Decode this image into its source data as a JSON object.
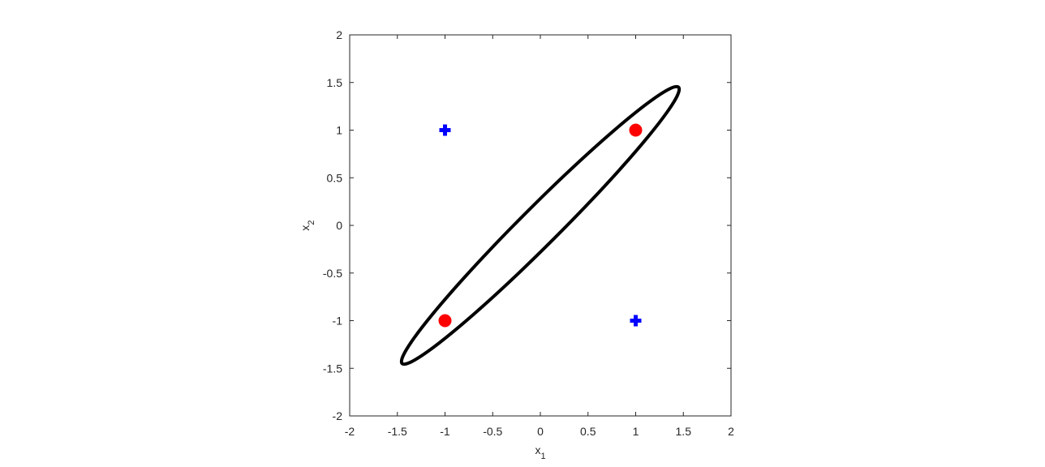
{
  "chart_data": {
    "type": "scatter",
    "x_label": {
      "text": "x",
      "subscript": "1"
    },
    "y_label": {
      "text": "x",
      "subscript": "2"
    },
    "xlim": [
      -2,
      2
    ],
    "ylim": [
      -2,
      2
    ],
    "xticks": [
      -2,
      -1.5,
      -1,
      -0.5,
      0,
      0.5,
      1,
      1.5,
      2
    ],
    "yticks": [
      -2,
      -1.5,
      -1,
      -0.5,
      0,
      0.5,
      1,
      1.5,
      2
    ],
    "grid": false,
    "series": [
      {
        "mode": "line",
        "color": "#000000",
        "closed": true,
        "x": [
          1.45,
          1.363,
          1.184,
          0.925,
          0.602,
          0.239,
          -0.141,
          -0.512,
          -0.847,
          -1.125,
          -1.326,
          -1.437,
          -1.45,
          -1.363,
          -1.184,
          -0.925,
          -0.602,
          -0.239,
          0.141,
          0.512,
          0.847,
          1.125,
          1.326,
          1.437
        ],
        "y": [
          1.45,
          1.437,
          1.326,
          1.125,
          0.847,
          0.512,
          0.141,
          -0.239,
          -0.602,
          -0.925,
          -1.184,
          -1.363,
          -1.45,
          -1.437,
          -1.326,
          -1.125,
          -0.847,
          -0.512,
          -0.141,
          0.239,
          0.602,
          0.925,
          1.184,
          1.363
        ]
      },
      {
        "mode": "marker",
        "marker": "circle",
        "color": "#ff0000",
        "x": [
          -1,
          1
        ],
        "y": [
          -1,
          1
        ]
      },
      {
        "mode": "marker",
        "marker": "plus",
        "color": "#0000ff",
        "x": [
          -1,
          1
        ],
        "y": [
          1,
          -1
        ]
      }
    ]
  }
}
